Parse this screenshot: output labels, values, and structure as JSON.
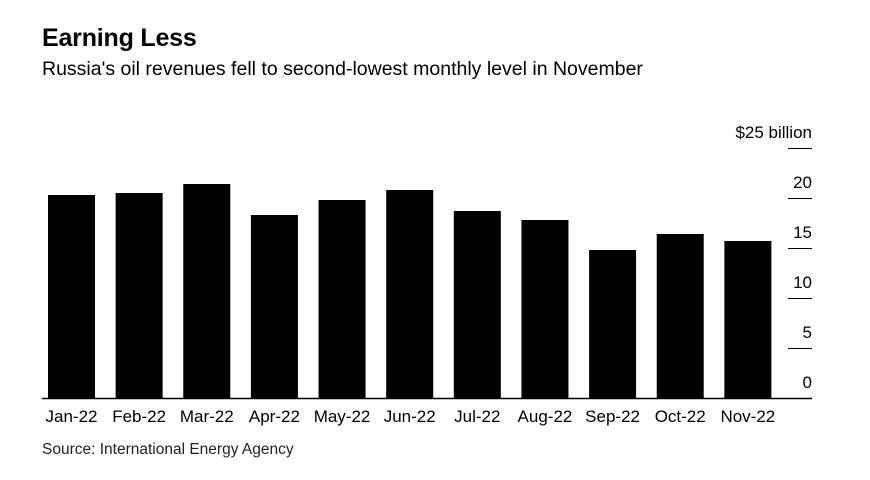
{
  "title": "Earning Less",
  "subtitle": "Russia's oil revenues fell to second-lowest monthly level in November",
  "source": "Source: International Energy Agency",
  "colors": {
    "bar": "#000000",
    "axis": "#000000"
  },
  "chart_data": {
    "type": "bar",
    "categories": [
      "Jan-22",
      "Feb-22",
      "Mar-22",
      "Apr-22",
      "May-22",
      "Jun-22",
      "Jul-22",
      "Aug-22",
      "Sep-22",
      "Oct-22",
      "Nov-22"
    ],
    "values": [
      20.3,
      20.5,
      21.4,
      18.3,
      19.8,
      20.8,
      18.7,
      17.8,
      14.8,
      16.4,
      15.7
    ],
    "ylim": [
      0,
      25
    ],
    "yticks": [
      0,
      5,
      10,
      15,
      20,
      25
    ],
    "ytick_labels": [
      "0",
      "5",
      "10",
      "15",
      "20",
      "$25 billion"
    ],
    "y_axis_position": "right",
    "grid": false
  }
}
